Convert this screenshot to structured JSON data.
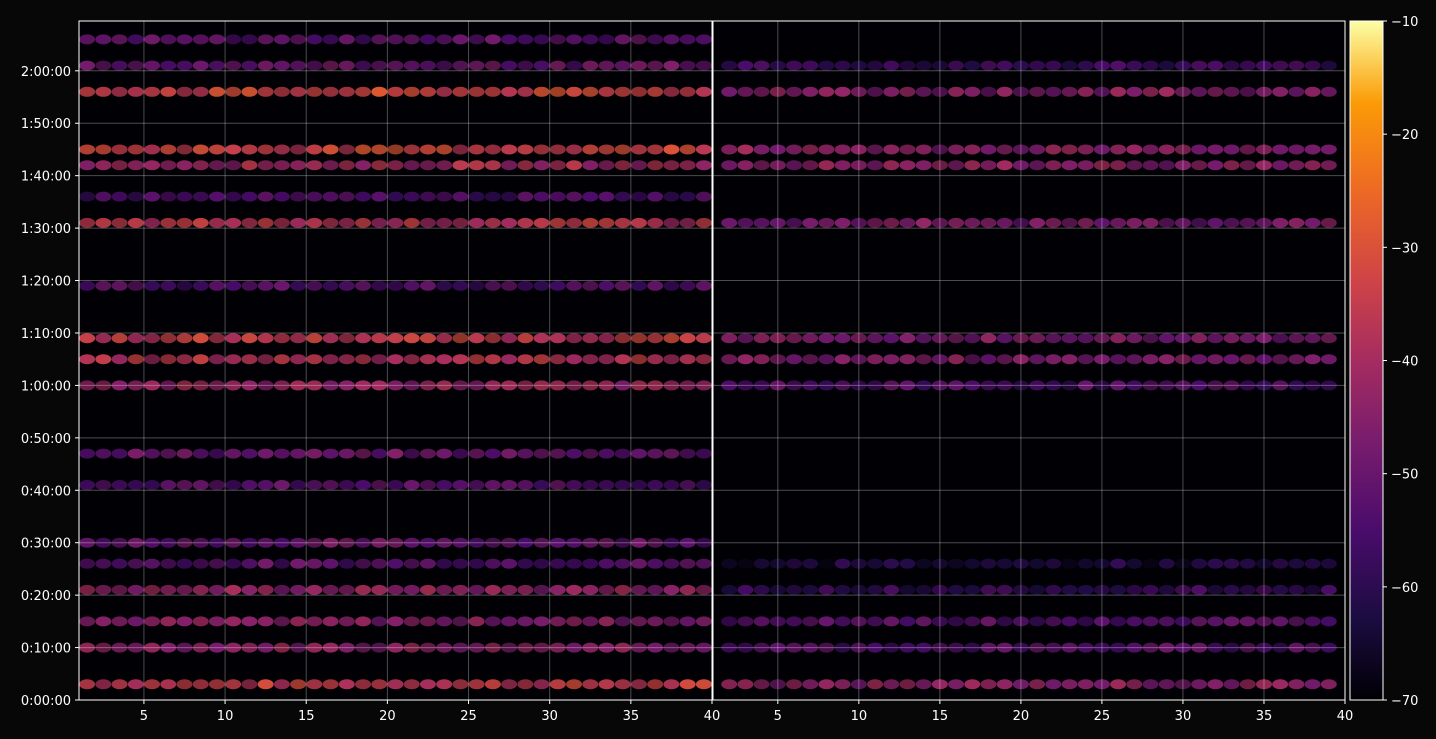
{
  "chart_data": [
    {
      "type": "heatmap",
      "title": "",
      "xlabel": "",
      "ylabel": "",
      "xlim": [
        1,
        40
      ],
      "ylim": [
        0,
        7770
      ],
      "x_ticks": [
        5,
        10,
        15,
        20,
        25,
        30,
        35,
        40
      ],
      "x_tick_labels": [
        "5",
        "10",
        "15",
        "20",
        "25",
        "30",
        "35",
        "40"
      ],
      "y_ticks": [
        0,
        600,
        1200,
        1800,
        2400,
        3000,
        3600,
        4200,
        4800,
        5400,
        6000,
        6600,
        7200
      ],
      "y_tick_labels": [
        "0:00:00",
        "0:10:00",
        "0:20:00",
        "0:30:00",
        "0:40:00",
        "0:50:00",
        "1:00:00",
        "1:10:00",
        "1:20:00",
        "1:30:00",
        "1:40:00",
        "1:50:00",
        "2:00:00"
      ],
      "grid": true,
      "colormap": "inferno",
      "bands": [
        {
          "time_s": 180,
          "level": -35
        },
        {
          "time_s": 600,
          "level": -43
        },
        {
          "time_s": 900,
          "level": -45
        },
        {
          "time_s": 1260,
          "level": -43
        },
        {
          "time_s": 1560,
          "level": -52
        },
        {
          "time_s": 1800,
          "level": -50
        },
        {
          "time_s": 2460,
          "level": -53
        },
        {
          "time_s": 2820,
          "level": -50
        },
        {
          "time_s": 3600,
          "level": -42
        },
        {
          "time_s": 3900,
          "level": -37
        },
        {
          "time_s": 4140,
          "level": -35
        },
        {
          "time_s": 4740,
          "level": -54
        },
        {
          "time_s": 5460,
          "level": -37
        },
        {
          "time_s": 5760,
          "level": -55
        },
        {
          "time_s": 6120,
          "level": -40
        },
        {
          "time_s": 6300,
          "level": -33
        },
        {
          "time_s": 6960,
          "level": -33
        },
        {
          "time_s": 7260,
          "level": -50
        },
        {
          "time_s": 7560,
          "level": -52
        }
      ]
    },
    {
      "type": "heatmap",
      "title": "",
      "xlabel": "",
      "ylabel": "",
      "xlim": [
        1,
        40
      ],
      "ylim": [
        0,
        7770
      ],
      "x_ticks": [
        5,
        10,
        15,
        20,
        25,
        30,
        35,
        40
      ],
      "x_tick_labels": [
        "5",
        "10",
        "15",
        "20",
        "25",
        "30",
        "35",
        "40"
      ],
      "grid": true,
      "colormap": "inferno",
      "bands": [
        {
          "time_s": 180,
          "level": -44
        },
        {
          "time_s": 600,
          "level": -53
        },
        {
          "time_s": 900,
          "level": -52
        },
        {
          "time_s": 1260,
          "level": -58
        },
        {
          "time_s": 1560,
          "level": -63
        },
        {
          "time_s": 3600,
          "level": -54
        },
        {
          "time_s": 3900,
          "level": -46
        },
        {
          "time_s": 4140,
          "level": -47
        },
        {
          "time_s": 5460,
          "level": -47
        },
        {
          "time_s": 6120,
          "level": -44
        },
        {
          "time_s": 6300,
          "level": -44
        },
        {
          "time_s": 6960,
          "level": -45
        },
        {
          "time_s": 7260,
          "level": -57
        }
      ]
    }
  ],
  "colorbar": {
    "min": -70,
    "max": -10,
    "ticks": [
      -70,
      -60,
      -50,
      -40,
      -30,
      -20,
      -10
    ],
    "tick_labels": [
      "−70",
      "−60",
      "−50",
      "−40",
      "−30",
      "−20",
      "−10"
    ]
  }
}
